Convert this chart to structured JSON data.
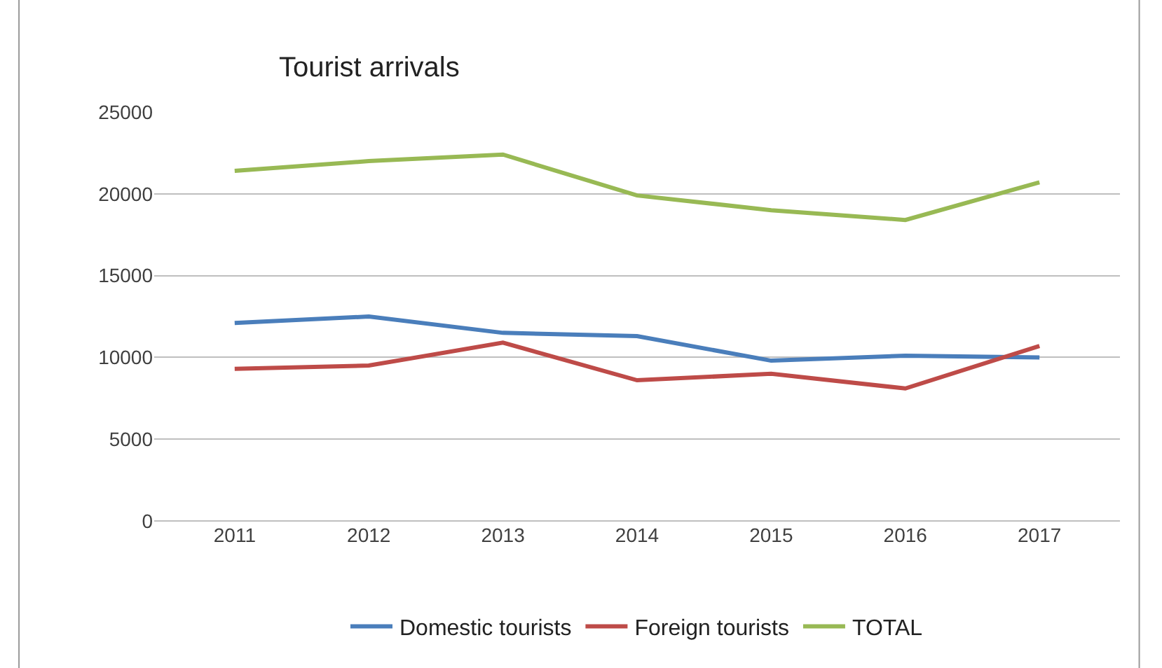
{
  "chart_data": {
    "type": "line",
    "title": "Tourist arrivals",
    "categories": [
      "2011",
      "2012",
      "2013",
      "2014",
      "2015",
      "2016",
      "2017"
    ],
    "series": [
      {
        "name": "Domestic tourists",
        "color": "#4a7ebb",
        "values": [
          12100,
          12500,
          11500,
          11300,
          9800,
          10100,
          10000
        ]
      },
      {
        "name": "Foreign tourists",
        "color": "#be4b48",
        "values": [
          9300,
          9500,
          10900,
          8600,
          9000,
          8100,
          10700
        ]
      },
      {
        "name": "TOTAL",
        "color": "#98b954",
        "values": [
          21400,
          22000,
          22400,
          19900,
          19000,
          18400,
          20700
        ]
      }
    ],
    "ylim": [
      0,
      25000
    ],
    "yticks": [
      0,
      5000,
      10000,
      15000,
      20000,
      25000
    ],
    "grid": "y",
    "legend": "bottom",
    "marker": "none",
    "line_style": "solid"
  }
}
